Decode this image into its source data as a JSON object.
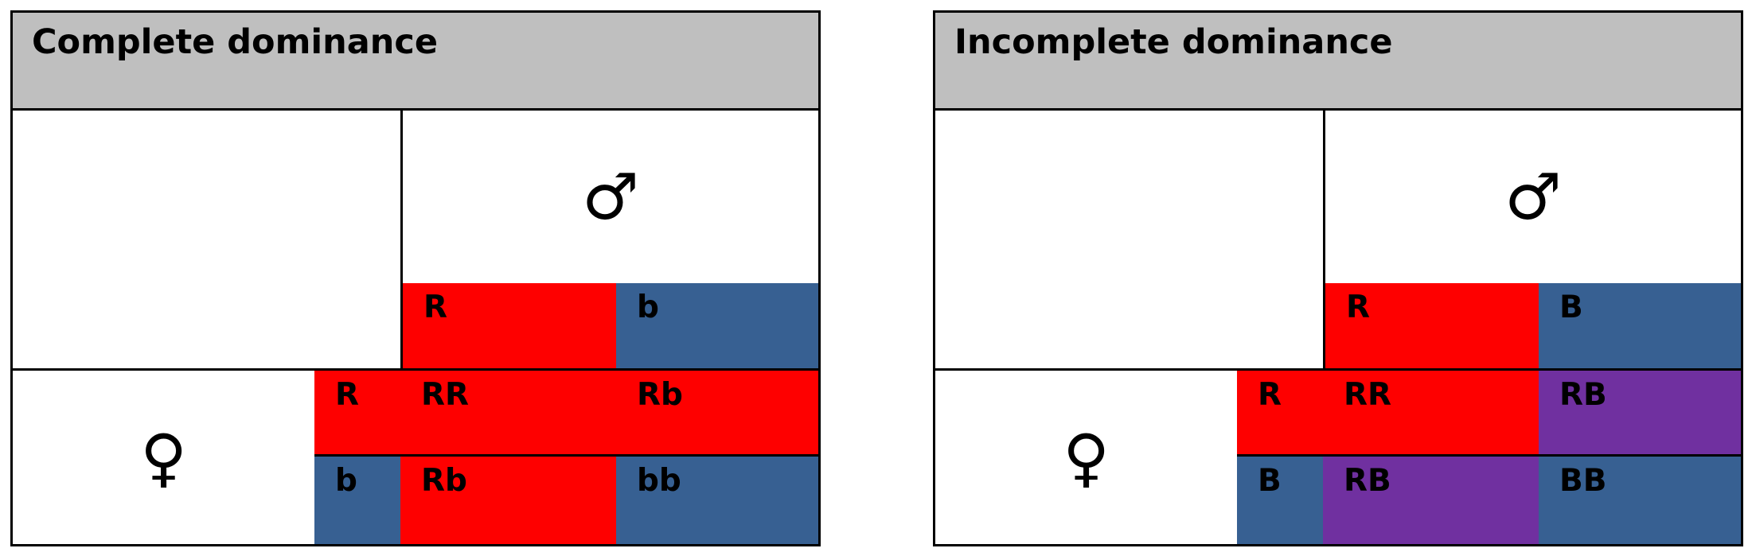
{
  "panels": [
    {
      "title": "Complete dominance",
      "male_symbol": "♂",
      "female_symbol": "♀",
      "male_alleles": [
        "R",
        "b"
      ],
      "female_alleles": [
        "R",
        "b"
      ],
      "offspring": [
        [
          "RR",
          "Rb"
        ],
        [
          "Rb",
          "bb"
        ]
      ]
    },
    {
      "title": "Incomplete dominance",
      "male_symbol": "♂",
      "female_symbol": "♀",
      "male_alleles": [
        "R",
        "B"
      ],
      "female_alleles": [
        "R",
        "B"
      ],
      "offspring": [
        [
          "RR",
          "RB"
        ],
        [
          "RB",
          "BB"
        ]
      ]
    }
  ],
  "colors": {
    "red": "#fe0000",
    "blue": "#376092",
    "purple": "#7030a0",
    "header": "#bfbfbf"
  }
}
